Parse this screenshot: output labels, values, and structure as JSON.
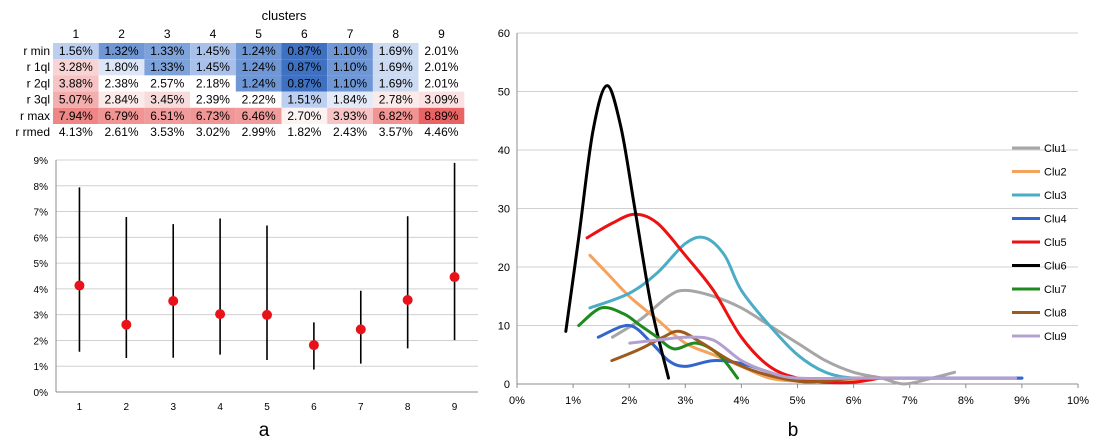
{
  "panel_labels": {
    "a": "a",
    "b": "b"
  },
  "chart_data": [
    {
      "type": "table",
      "title": "clusters",
      "columns": [
        "1",
        "2",
        "3",
        "4",
        "5",
        "6",
        "7",
        "8",
        "9"
      ],
      "rows": [
        {
          "label": "r min",
          "values": [
            "1.56%",
            "1.32%",
            "1.33%",
            "1.45%",
            "1.24%",
            "0.87%",
            "1.10%",
            "1.69%",
            "2.01%"
          ],
          "fills": [
            "#bccff0",
            "#6f97d6",
            "#7ea2da",
            "#a9c1ea",
            "#6f97d6",
            "#3f71c2",
            "#6f97d6",
            "#ccdaf2",
            "#ffffff"
          ]
        },
        {
          "label": "r 1ql",
          "values": [
            "3.28%",
            "1.80%",
            "1.33%",
            "1.45%",
            "1.24%",
            "0.87%",
            "1.10%",
            "1.69%",
            "2.01%"
          ],
          "fills": [
            "#f8d4d4",
            "#dde6f7",
            "#7ea2da",
            "#a9c1ea",
            "#6f97d6",
            "#3f71c2",
            "#6f97d6",
            "#ccdaf2",
            "#ffffff"
          ]
        },
        {
          "label": "r 2ql",
          "values": [
            "3.88%",
            "2.38%",
            "2.57%",
            "2.18%",
            "1.24%",
            "0.87%",
            "1.10%",
            "1.69%",
            "2.01%"
          ],
          "fills": [
            "#f6c4c4",
            "#ffffff",
            "#ffffff",
            "#ffffff",
            "#6f97d6",
            "#3f71c2",
            "#6f97d6",
            "#ccdaf2",
            "#ffffff"
          ]
        },
        {
          "label": "r 3ql",
          "values": [
            "5.07%",
            "2.84%",
            "3.45%",
            "2.39%",
            "2.22%",
            "1.51%",
            "1.84%",
            "2.78%",
            "3.09%"
          ],
          "fills": [
            "#f3aeae",
            "#fbeaea",
            "#f8dcdc",
            "#ffffff",
            "#ffffff",
            "#bccff0",
            "#e4ebf8",
            "#fbeaea",
            "#fae2e2"
          ]
        },
        {
          "label": "r max",
          "values": [
            "7.94%",
            "6.79%",
            "6.51%",
            "6.73%",
            "6.46%",
            "2.70%",
            "3.93%",
            "6.82%",
            "8.89%"
          ],
          "fills": [
            "#ee8686",
            "#f09494",
            "#f19c9c",
            "#f09696",
            "#f19c9c",
            "#fdf2f2",
            "#f6c4c4",
            "#f09494",
            "#e86464"
          ]
        },
        {
          "label": "r rmed",
          "values": [
            "4.13%",
            "2.61%",
            "3.53%",
            "3.02%",
            "2.99%",
            "1.82%",
            "2.43%",
            "3.57%",
            "4.46%"
          ],
          "fills": [
            "#ffffff",
            "#ffffff",
            "#ffffff",
            "#ffffff",
            "#ffffff",
            "#ffffff",
            "#ffffff",
            "#ffffff",
            "#ffffff"
          ]
        }
      ]
    },
    {
      "type": "scatter",
      "title": "",
      "xlabel": "",
      "ylabel": "",
      "categories": [
        "1",
        "2",
        "3",
        "4",
        "5",
        "6",
        "7",
        "8",
        "9"
      ],
      "ylim": [
        0,
        0.09
      ],
      "yticks": [
        "0%",
        "1%",
        "2%",
        "3%",
        "4%",
        "5%",
        "6%",
        "7%",
        "8%",
        "9%"
      ],
      "grid": true,
      "range_min": [
        1.56,
        1.32,
        1.33,
        1.45,
        1.24,
        0.87,
        1.1,
        1.69,
        2.01
      ],
      "range_max": [
        7.94,
        6.79,
        6.51,
        6.73,
        6.46,
        2.7,
        3.93,
        6.82,
        8.89
      ],
      "median": [
        4.13,
        2.61,
        3.53,
        3.02,
        2.99,
        1.82,
        2.43,
        3.57,
        4.46
      ],
      "median_color": "#e8121b",
      "line_color": "#000000"
    },
    {
      "type": "line",
      "title": "",
      "xlabel": "",
      "ylabel": "",
      "xlim": [
        0,
        0.1
      ],
      "ylim": [
        0,
        60
      ],
      "xticks": [
        "0%",
        "1%",
        "2%",
        "3%",
        "4%",
        "5%",
        "6%",
        "7%",
        "8%",
        "9%",
        "10%"
      ],
      "yticks": [
        "0",
        "10",
        "20",
        "30",
        "40",
        "50",
        "60"
      ],
      "grid": true,
      "legend": "right",
      "series": [
        {
          "name": "Clu1",
          "color": "#a6a6a6",
          "points": [
            [
              1.7,
              8
            ],
            [
              2.2,
              11
            ],
            [
              2.7,
              15
            ],
            [
              3.0,
              16
            ],
            [
              3.5,
              15
            ],
            [
              4.0,
              13
            ],
            [
              4.5,
              10
            ],
            [
              5.0,
              7
            ],
            [
              5.5,
              4
            ],
            [
              6.0,
              2
            ],
            [
              6.5,
              1
            ],
            [
              6.9,
              0
            ],
            [
              7.4,
              1
            ],
            [
              7.8,
              2
            ]
          ]
        },
        {
          "name": "Clu2",
          "color": "#f5a25d",
          "points": [
            [
              1.3,
              22
            ],
            [
              1.6,
              19
            ],
            [
              2.0,
              15
            ],
            [
              2.5,
              11
            ],
            [
              3.0,
              7
            ],
            [
              3.5,
              5
            ],
            [
              4.0,
              3
            ],
            [
              4.5,
              1
            ],
            [
              5.0,
              0.5
            ],
            [
              5.5,
              0.5
            ],
            [
              6.0,
              0.5
            ],
            [
              6.5,
              1
            ],
            [
              7.0,
              1
            ],
            [
              7.5,
              1
            ],
            [
              8.0,
              1
            ],
            [
              9.0,
              1
            ]
          ]
        },
        {
          "name": "Clu3",
          "color": "#4bacc6",
          "points": [
            [
              1.3,
              13
            ],
            [
              2.0,
              15.5
            ],
            [
              2.5,
              19
            ],
            [
              3.0,
              24
            ],
            [
              3.35,
              25
            ],
            [
              3.7,
              22
            ],
            [
              4.0,
              16
            ],
            [
              4.5,
              10
            ],
            [
              5.0,
              5
            ],
            [
              5.5,
              2
            ],
            [
              6.0,
              1
            ],
            [
              6.5,
              1
            ],
            [
              7.0,
              1
            ],
            [
              8.0,
              1
            ],
            [
              9.0,
              1
            ]
          ]
        },
        {
          "name": "Clu4",
          "color": "#3366cc",
          "points": [
            [
              1.45,
              8
            ],
            [
              2.0,
              10
            ],
            [
              2.4,
              7
            ],
            [
              2.7,
              4
            ],
            [
              3.0,
              3
            ],
            [
              3.5,
              4
            ],
            [
              4.0,
              3.5
            ],
            [
              4.5,
              2
            ],
            [
              5.0,
              0.5
            ],
            [
              5.5,
              0.5
            ],
            [
              6.0,
              1
            ],
            [
              7.0,
              1
            ],
            [
              8.0,
              1
            ],
            [
              9.0,
              1
            ]
          ]
        },
        {
          "name": "Clu5",
          "color": "#ee1111",
          "points": [
            [
              1.25,
              25
            ],
            [
              1.7,
              27.5
            ],
            [
              2.1,
              29
            ],
            [
              2.5,
              27.5
            ],
            [
              3.0,
              22
            ],
            [
              3.5,
              16
            ],
            [
              4.0,
              8
            ],
            [
              4.5,
              3
            ],
            [
              5.0,
              1
            ],
            [
              5.5,
              0.3
            ],
            [
              6.0,
              0.3
            ],
            [
              6.46,
              1
            ]
          ]
        },
        {
          "name": "Clu6",
          "color": "#000000",
          "points": [
            [
              0.87,
              9
            ],
            [
              1.1,
              25
            ],
            [
              1.35,
              43
            ],
            [
              1.6,
              51
            ],
            [
              1.85,
              44
            ],
            [
              2.1,
              30
            ],
            [
              2.4,
              13
            ],
            [
              2.7,
              1
            ]
          ]
        },
        {
          "name": "Clu7",
          "color": "#1f8a1f",
          "points": [
            [
              1.1,
              10
            ],
            [
              1.5,
              13
            ],
            [
              1.9,
              12
            ],
            [
              2.2,
              10
            ],
            [
              2.5,
              8
            ],
            [
              2.8,
              6
            ],
            [
              3.2,
              7
            ],
            [
              3.6,
              5
            ],
            [
              3.93,
              1
            ]
          ]
        },
        {
          "name": "Clu8",
          "color": "#9c5a1c",
          "points": [
            [
              1.69,
              4
            ],
            [
              2.2,
              6
            ],
            [
              2.6,
              8
            ],
            [
              2.9,
              9
            ],
            [
              3.3,
              7
            ],
            [
              3.8,
              4
            ],
            [
              4.3,
              2
            ],
            [
              5.0,
              0.5
            ],
            [
              5.5,
              0.5
            ],
            [
              6.0,
              1
            ],
            [
              6.5,
              1
            ],
            [
              6.82,
              1
            ]
          ]
        },
        {
          "name": "Clu9",
          "color": "#b4a0d0",
          "points": [
            [
              2.01,
              7
            ],
            [
              2.5,
              7.5
            ],
            [
              3.0,
              8
            ],
            [
              3.5,
              7.5
            ],
            [
              4.0,
              4
            ],
            [
              4.5,
              2
            ],
            [
              5.0,
              1
            ],
            [
              6.0,
              1
            ],
            [
              7.0,
              1
            ],
            [
              8.0,
              1
            ],
            [
              8.89,
              1
            ]
          ]
        }
      ]
    }
  ]
}
